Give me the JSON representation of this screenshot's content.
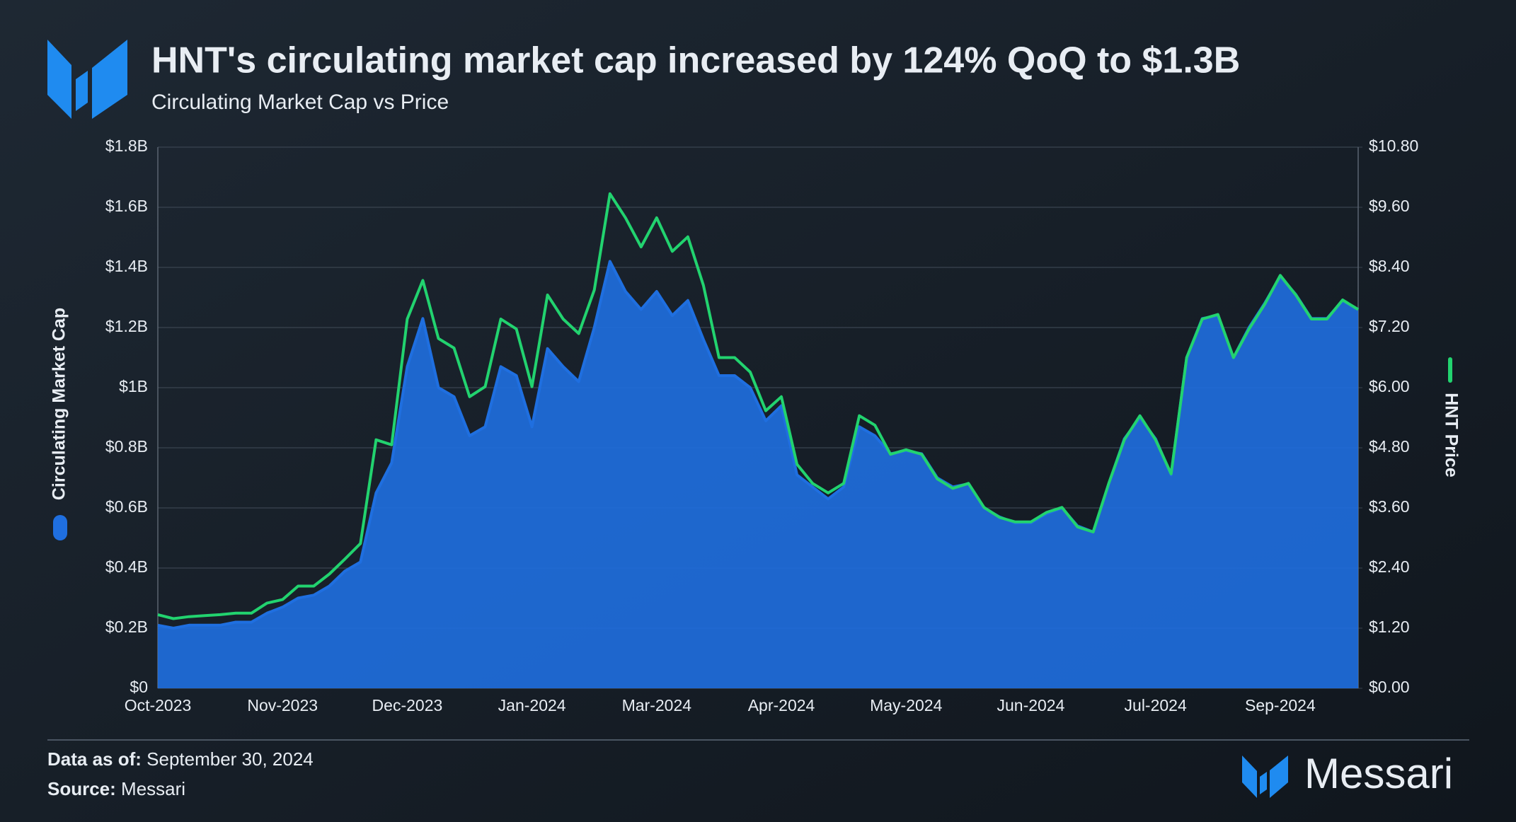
{
  "chart_data": {
    "type": "area",
    "title": "HNT's circulating market cap increased by 124% QoQ to $1.3B",
    "subtitle": "Circulating Market Cap vs Price",
    "categories": [
      "Oct-2023",
      null,
      null,
      null,
      null,
      null,
      null,
      null,
      "Nov-2023",
      null,
      null,
      null,
      null,
      null,
      null,
      null,
      "Dec-2023",
      null,
      null,
      null,
      null,
      null,
      null,
      null,
      "Jan-2024",
      null,
      null,
      null,
      null,
      null,
      null,
      null,
      "Mar-2024",
      null,
      null,
      null,
      null,
      null,
      null,
      null,
      "Apr-2024",
      null,
      null,
      null,
      null,
      null,
      null,
      null,
      "May-2024",
      null,
      null,
      null,
      null,
      null,
      null,
      null,
      "Jun-2024",
      null,
      null,
      null,
      null,
      null,
      null,
      null,
      "Jul-2024",
      null,
      null,
      null,
      null,
      null,
      null,
      null,
      "Sep-2024",
      null,
      null,
      null,
      null,
      null
    ],
    "series": [
      {
        "name": "Circulating Market Cap",
        "type": "area",
        "color": "#1f6fe0",
        "axis": "y",
        "values": [
          0.21,
          0.2,
          0.21,
          0.21,
          0.21,
          0.22,
          0.22,
          0.25,
          0.27,
          0.3,
          0.31,
          0.34,
          0.39,
          0.42,
          0.65,
          0.75,
          1.07,
          1.23,
          1.0,
          0.97,
          0.84,
          0.87,
          1.07,
          1.04,
          0.87,
          1.13,
          1.07,
          1.02,
          1.2,
          1.42,
          1.32,
          1.26,
          1.32,
          1.24,
          1.29,
          1.16,
          1.04,
          1.04,
          1.0,
          0.89,
          0.94,
          0.71,
          0.67,
          0.63,
          0.67,
          0.87,
          0.84,
          0.78,
          0.79,
          0.78,
          0.7,
          0.67,
          0.68,
          0.6,
          0.57,
          0.55,
          0.55,
          0.58,
          0.6,
          0.54,
          0.52,
          0.68,
          0.83,
          0.9,
          0.83,
          0.71,
          1.1,
          1.23,
          1.24,
          1.1,
          1.2,
          1.28,
          1.37,
          1.31,
          1.23,
          1.23,
          1.29,
          1.26
        ]
      },
      {
        "name": "HNT Price",
        "type": "line",
        "color": "#22d36f",
        "axis": "y2",
        "values": [
          1.47,
          1.39,
          1.43,
          1.45,
          1.47,
          1.5,
          1.5,
          1.7,
          1.77,
          2.04,
          2.04,
          2.28,
          2.58,
          2.89,
          4.96,
          4.86,
          7.37,
          8.14,
          6.98,
          6.79,
          5.82,
          6.02,
          7.37,
          7.17,
          6.02,
          7.85,
          7.37,
          7.08,
          7.95,
          9.87,
          9.39,
          8.81,
          9.39,
          8.72,
          9.01,
          8.04,
          6.6,
          6.6,
          6.31,
          5.54,
          5.82,
          4.47,
          4.09,
          3.9,
          4.09,
          5.44,
          5.25,
          4.67,
          4.76,
          4.67,
          4.18,
          3.99,
          4.09,
          3.61,
          3.41,
          3.32,
          3.32,
          3.51,
          3.61,
          3.22,
          3.12,
          4.09,
          4.96,
          5.44,
          4.96,
          4.28,
          6.6,
          7.37,
          7.46,
          6.6,
          7.17,
          7.66,
          8.24,
          7.85,
          7.37,
          7.37,
          7.75,
          7.56
        ]
      }
    ],
    "ylim": [
      0,
      1.8
    ],
    "yticks": [
      {
        "value": 0,
        "label": "$0"
      },
      {
        "value": 0.2,
        "label": "$0.2B"
      },
      {
        "value": 0.4,
        "label": "$0.4B"
      },
      {
        "value": 0.6,
        "label": "$0.6B"
      },
      {
        "value": 0.8,
        "label": "$0.8B"
      },
      {
        "value": 1,
        "label": "$1B"
      },
      {
        "value": 1.2,
        "label": "$1.2B"
      },
      {
        "value": 1.4,
        "label": "$1.4B"
      },
      {
        "value": 1.6,
        "label": "$1.6B"
      },
      {
        "value": 1.8,
        "label": "$1.8B"
      }
    ],
    "y2lim": [
      0,
      10.8
    ],
    "y2ticks": [
      {
        "value": 0,
        "label": "$0.00"
      },
      {
        "value": 1.2,
        "label": "$1.20"
      },
      {
        "value": 2.4,
        "label": "$2.40"
      },
      {
        "value": 3.6,
        "label": "$3.60"
      },
      {
        "value": 4.8,
        "label": "$4.80"
      },
      {
        "value": 6,
        "label": "$6.00"
      },
      {
        "value": 7.2,
        "label": "$7.20"
      },
      {
        "value": 8.4,
        "label": "$8.40"
      },
      {
        "value": 9.6,
        "label": "$9.60"
      },
      {
        "value": 10.8,
        "label": "$10.80"
      }
    ],
    "grid": true
  },
  "footer": {
    "date_label": "Data as of:",
    "date": "September 30, 2024",
    "source_label": "Source:",
    "source": "Messari"
  },
  "brand": "Messari"
}
